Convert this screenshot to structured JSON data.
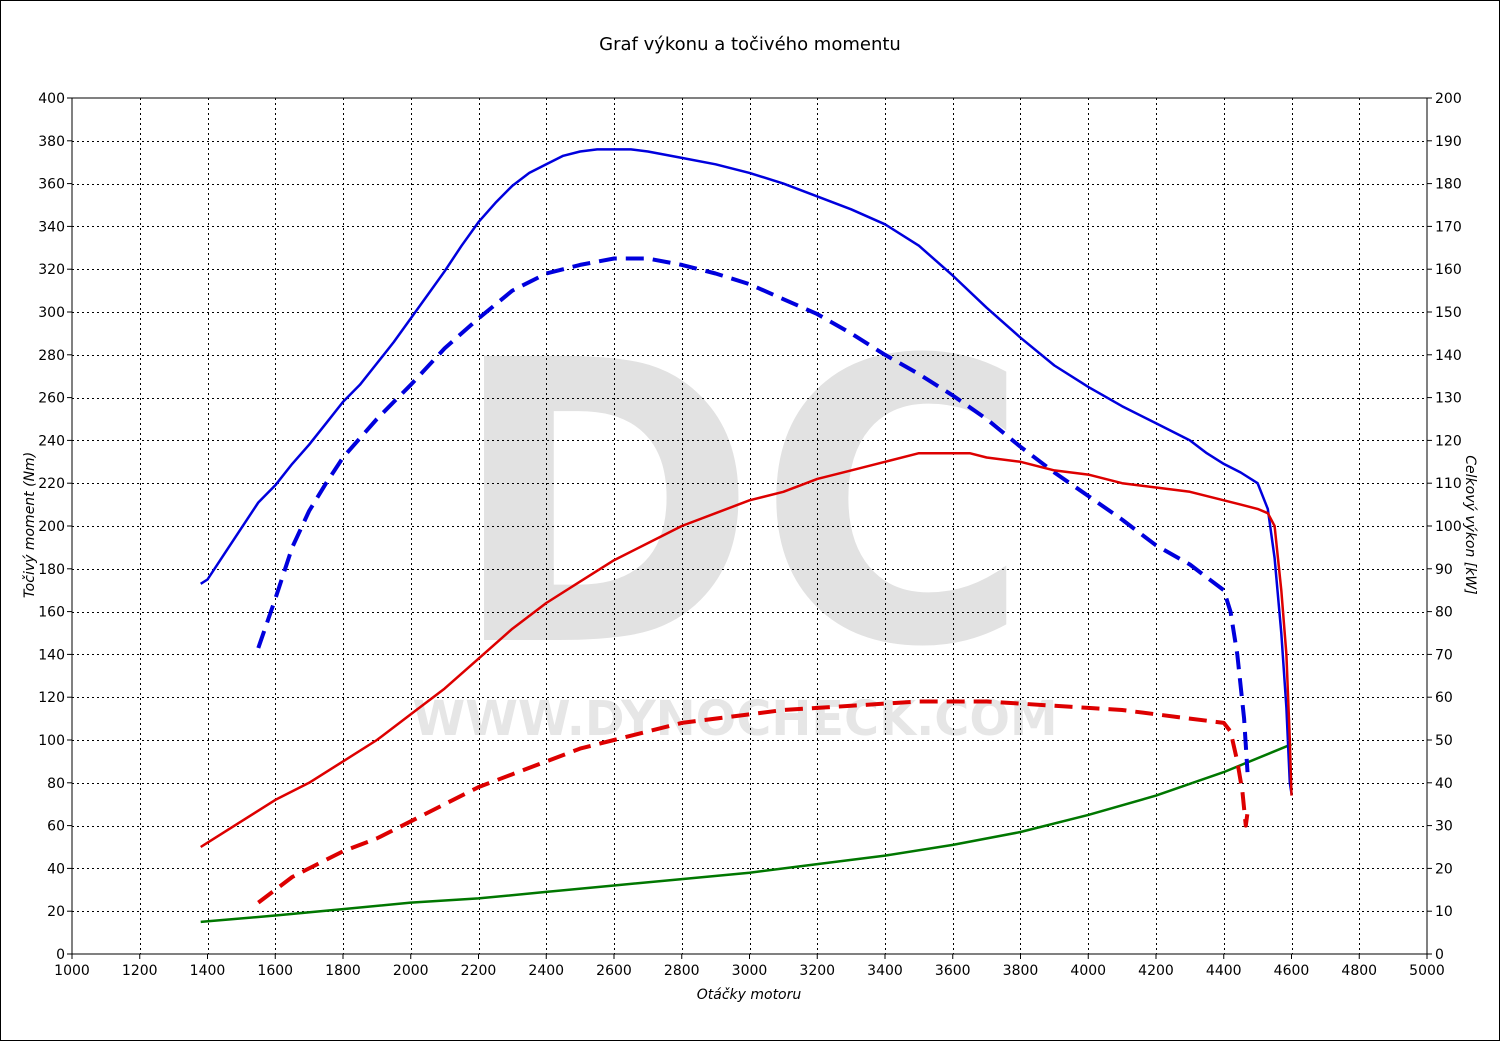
{
  "chart_data": {
    "type": "line",
    "title": "Graf výkonu a točivého momentu",
    "xlabel": "Otáčky motoru",
    "ylabel_left": "Točivý moment (Nm)",
    "ylabel_right": "Celkový výkon [kW]",
    "xlim": [
      1000,
      5000
    ],
    "ylim_left": [
      0,
      400
    ],
    "ylim_right": [
      0,
      200
    ],
    "x_ticks": [
      1000,
      1200,
      1400,
      1600,
      1800,
      2000,
      2200,
      2400,
      2600,
      2800,
      3000,
      3200,
      3400,
      3600,
      3800,
      4000,
      4200,
      4400,
      4600,
      4800,
      5000
    ],
    "y_ticks_left": [
      0,
      20,
      40,
      60,
      80,
      100,
      120,
      140,
      160,
      180,
      200,
      220,
      240,
      260,
      280,
      300,
      320,
      340,
      360,
      380,
      400
    ],
    "y_ticks_right": [
      0,
      10,
      20,
      30,
      40,
      50,
      60,
      70,
      80,
      90,
      100,
      110,
      120,
      130,
      140,
      150,
      160,
      170,
      180,
      190,
      200
    ],
    "grid": true,
    "watermark": {
      "logo": "DC",
      "url": "WWW.DYNOCHECK.COM"
    },
    "series": [
      {
        "axis": "left",
        "color": "#0000dd",
        "dash": false,
        "x": [
          1380,
          1400,
          1450,
          1500,
          1550,
          1600,
          1650,
          1700,
          1750,
          1800,
          1850,
          1900,
          1950,
          2000,
          2050,
          2100,
          2150,
          2200,
          2250,
          2300,
          2350,
          2400,
          2450,
          2500,
          2550,
          2600,
          2650,
          2700,
          2800,
          2900,
          3000,
          3100,
          3200,
          3300,
          3400,
          3500,
          3600,
          3700,
          3800,
          3900,
          4000,
          4100,
          4200,
          4300,
          4350,
          4400,
          4450,
          4500,
          4530,
          4550,
          4570,
          4585,
          4595,
          4600
        ],
        "y": [
          173,
          175,
          187,
          199,
          211,
          219,
          229,
          238,
          248,
          258,
          266,
          276,
          286,
          297,
          308,
          319,
          331,
          342,
          351,
          359,
          365,
          369,
          373,
          375,
          376,
          376,
          376,
          375,
          372,
          369,
          365,
          360,
          354,
          348,
          341,
          331,
          317,
          302,
          288,
          275,
          265,
          256,
          248,
          240,
          234,
          229,
          225,
          220,
          208,
          185,
          150,
          115,
          80,
          75
        ]
      },
      {
        "axis": "left",
        "color": "#0000dd",
        "dash": true,
        "x": [
          1550,
          1600,
          1650,
          1700,
          1750,
          1800,
          1850,
          1900,
          1950,
          2000,
          2100,
          2200,
          2300,
          2400,
          2500,
          2600,
          2650,
          2700,
          2800,
          2900,
          3000,
          3100,
          3200,
          3300,
          3400,
          3500,
          3600,
          3700,
          3800,
          3900,
          4000,
          4100,
          4200,
          4300,
          4350,
          4400,
          4420,
          4440,
          4460,
          4470
        ],
        "y": [
          143,
          166,
          190,
          207,
          220,
          232,
          241,
          250,
          258,
          266,
          283,
          297,
          310,
          318,
          322,
          325,
          325,
          325,
          322,
          318,
          313,
          306,
          299,
          290,
          280,
          271,
          261,
          250,
          237,
          225,
          214,
          203,
          191,
          182,
          176,
          170,
          160,
          140,
          110,
          85
        ]
      },
      {
        "axis": "right",
        "color": "#dd0000",
        "dash": false,
        "x": [
          1380,
          1400,
          1500,
          1600,
          1700,
          1800,
          1900,
          2000,
          2100,
          2200,
          2300,
          2400,
          2500,
          2600,
          2700,
          2800,
          2900,
          3000,
          3100,
          3200,
          3300,
          3400,
          3500,
          3550,
          3600,
          3650,
          3700,
          3800,
          3900,
          4000,
          4100,
          4200,
          4300,
          4400,
          4450,
          4500,
          4530,
          4550,
          4570,
          4585,
          4595,
          4600
        ],
        "y": [
          25,
          26,
          31,
          36,
          40,
          45,
          50,
          56,
          62,
          69,
          76,
          82,
          87,
          92,
          96,
          100,
          103,
          106,
          108,
          111,
          113,
          115,
          117,
          117,
          117,
          117,
          116,
          115,
          113,
          112,
          110,
          109,
          108,
          106,
          105,
          104,
          103,
          100,
          85,
          70,
          50,
          37
        ]
      },
      {
        "axis": "right",
        "color": "#dd0000",
        "dash": true,
        "x": [
          1550,
          1600,
          1650,
          1700,
          1750,
          1800,
          1900,
          2000,
          2100,
          2200,
          2300,
          2400,
          2500,
          2600,
          2700,
          2800,
          2900,
          3000,
          3100,
          3200,
          3300,
          3400,
          3500,
          3600,
          3700,
          3800,
          3900,
          4000,
          4100,
          4200,
          4300,
          4350,
          4400,
          4420,
          4440,
          4455,
          4465,
          4470
        ],
        "y": [
          12,
          15,
          18,
          20,
          22,
          24,
          27,
          31,
          35,
          39,
          42,
          45,
          48,
          50,
          52,
          54,
          55,
          56,
          57,
          57.5,
          58,
          58.5,
          59,
          59,
          59,
          58.5,
          58,
          57.5,
          57,
          56,
          55,
          54.5,
          54,
          52,
          45,
          38,
          30,
          33
        ]
      },
      {
        "axis": "left",
        "color": "#007700",
        "dash": false,
        "x": [
          1380,
          1600,
          1800,
          2000,
          2200,
          2400,
          2600,
          2800,
          3000,
          3200,
          3400,
          3600,
          3800,
          4000,
          4200,
          4400,
          4600
        ],
        "y": [
          15,
          18,
          21,
          24,
          26,
          29,
          32,
          35,
          38,
          42,
          46,
          51,
          57,
          65,
          74,
          85,
          98
        ]
      }
    ]
  }
}
